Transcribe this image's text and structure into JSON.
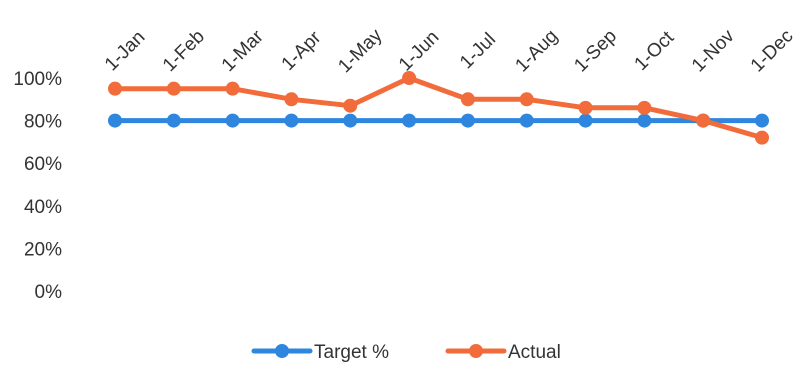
{
  "chart_data": {
    "type": "line",
    "categories": [
      "1-Jan",
      "1-Feb",
      "1-Mar",
      "1-Apr",
      "1-May",
      "1-Jun",
      "1-Jul",
      "1-Aug",
      "1-Sep",
      "1-Oct",
      "1-Nov",
      "1-Dec"
    ],
    "ylim": [
      0,
      100
    ],
    "yticks": [
      "0%",
      "20%",
      "40%",
      "60%",
      "80%",
      "100%"
    ],
    "ytick_values": [
      0,
      20,
      40,
      60,
      80,
      100
    ],
    "grid": false,
    "legend_position": "bottom",
    "series": [
      {
        "name": "Target %",
        "color": "#2E86DE",
        "values": [
          80,
          80,
          80,
          80,
          80,
          80,
          80,
          80,
          80,
          80,
          80,
          80
        ]
      },
      {
        "name": "Actual",
        "color": "#F26B3A",
        "values": [
          95,
          95,
          95,
          90,
          87,
          100,
          90,
          90,
          86,
          86,
          80,
          72
        ]
      }
    ]
  }
}
